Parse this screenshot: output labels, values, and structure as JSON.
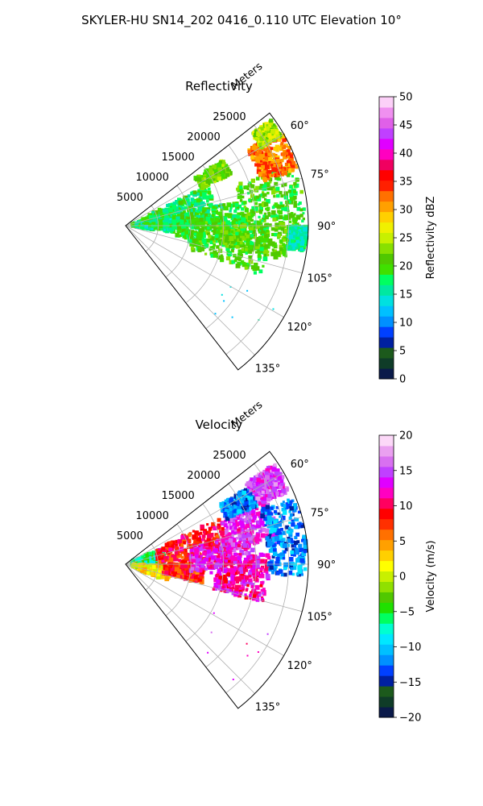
{
  "figure": {
    "title": "SKYLER-HU  SN14_202  0416_0.110 UTC Elevation 10°"
  },
  "chart_data": [
    {
      "type": "heatmap",
      "subtype": "polar-sector",
      "title": "Reflectivity",
      "radial_label": "Meters",
      "radial_ticks": [
        "5000",
        "10000",
        "15000",
        "20000",
        "25000"
      ],
      "radial_tick_values": [
        5000,
        10000,
        15000,
        20000,
        25000
      ],
      "rmax": 28000,
      "theta_range": [
        52,
        142
      ],
      "theta_ticks": [
        "60°",
        "75°",
        "90°",
        "105°",
        "120°",
        "135°"
      ],
      "theta_tick_values": [
        60,
        75,
        90,
        105,
        120,
        135
      ],
      "grid": true,
      "colorbar": {
        "label": "Reflectivity dBZ",
        "range": [
          0,
          50
        ],
        "ticks": [
          "0",
          "5",
          "10",
          "15",
          "20",
          "25",
          "30",
          "35",
          "40",
          "45",
          "50"
        ],
        "tick_values": [
          0,
          5,
          10,
          15,
          20,
          25,
          30,
          35,
          40,
          45,
          50
        ],
        "colors": [
          "#0a1a4a",
          "#0f3c28",
          "#1c5a1c",
          "#0020a0",
          "#0040ff",
          "#0090ff",
          "#00c0ff",
          "#00e0e0",
          "#00e8a0",
          "#00ff60",
          "#40e000",
          "#50c800",
          "#88e000",
          "#c8f000",
          "#f0f000",
          "#ffd000",
          "#ffa000",
          "#ff7000",
          "#ff2000",
          "#ff0000",
          "#f00060",
          "#ff00c0",
          "#e000ff",
          "#c040ff",
          "#e060e8",
          "#f090f0",
          "#fcd0f8"
        ]
      },
      "regions": [
        {
          "r": [
            1000,
            9000
          ],
          "theta": [
            70,
            98
          ],
          "value": 17
        },
        {
          "r": [
            4000,
            14000
          ],
          "theta": [
            64,
            92
          ],
          "value": 18
        },
        {
          "r": [
            8000,
            18000
          ],
          "theta": [
            78,
            102
          ],
          "value": 19
        },
        {
          "r": [
            10000,
            22000
          ],
          "theta": [
            84,
            110
          ],
          "value": 20
        },
        {
          "r": [
            14000,
            25000
          ],
          "theta": [
            90,
            102
          ],
          "value": 21
        },
        {
          "r": [
            18000,
            27500
          ],
          "theta": [
            70,
            92
          ],
          "value": 20
        },
        {
          "r": [
            22000,
            27800
          ],
          "theta": [
            58,
            72
          ],
          "value": 32
        },
        {
          "r": [
            24000,
            27500
          ],
          "theta": [
            54,
            60
          ],
          "value": 24
        },
        {
          "r": [
            13000,
            18000
          ],
          "theta": [
            56,
            64
          ],
          "value": 22
        },
        {
          "r": [
            25000,
            27800
          ],
          "theta": [
            90,
            98
          ],
          "value": 16
        },
        {
          "r": [
            15000,
            26000
          ],
          "theta": [
            116,
            138
          ],
          "value": 13,
          "sparse": true
        }
      ]
    },
    {
      "type": "heatmap",
      "subtype": "polar-sector",
      "title": "Velocity",
      "radial_label": "Meters",
      "radial_ticks": [
        "5000",
        "10000",
        "15000",
        "20000",
        "25000"
      ],
      "radial_tick_values": [
        5000,
        10000,
        15000,
        20000,
        25000
      ],
      "rmax": 28000,
      "theta_range": [
        52,
        142
      ],
      "theta_ticks": [
        "60°",
        "75°",
        "90°",
        "105°",
        "120°",
        "135°"
      ],
      "theta_tick_values": [
        60,
        75,
        90,
        105,
        120,
        135
      ],
      "grid": true,
      "colorbar": {
        "label": "Velocity (m/s)",
        "range": [
          -20,
          20
        ],
        "ticks": [
          "−20",
          "−15",
          "−10",
          "−5",
          "0",
          "5",
          "10",
          "15",
          "20"
        ],
        "tick_values": [
          -20,
          -15,
          -10,
          -5,
          0,
          5,
          10,
          15,
          20
        ],
        "colors": [
          "#0a1a4a",
          "#0f3c28",
          "#1c5a1c",
          "#0020a0",
          "#0040ff",
          "#0090ff",
          "#00c0ff",
          "#00e8ff",
          "#00ffd0",
          "#00ff60",
          "#20e000",
          "#50c800",
          "#90e000",
          "#c8f000",
          "#ffff00",
          "#ffd000",
          "#ffa000",
          "#ff7000",
          "#ff3000",
          "#ff0000",
          "#ff0060",
          "#ff00c0",
          "#e000ff",
          "#c040ff",
          "#d870f0",
          "#eaa0f0",
          "#fcd8f8"
        ]
      },
      "regions": [
        {
          "r": [
            1000,
            6000
          ],
          "theta": [
            66,
            90
          ],
          "value": -6
        },
        {
          "r": [
            1000,
            7000
          ],
          "theta": [
            92,
            112
          ],
          "value": 2
        },
        {
          "r": [
            5000,
            16000
          ],
          "theta": [
            64,
            88
          ],
          "value": 9
        },
        {
          "r": [
            6000,
            12000
          ],
          "theta": [
            90,
            104
          ],
          "value": 8
        },
        {
          "r": [
            10000,
            20000
          ],
          "theta": [
            76,
            96
          ],
          "value": 13
        },
        {
          "r": [
            14000,
            22000
          ],
          "theta": [
            86,
            106
          ],
          "value": 12
        },
        {
          "r": [
            16000,
            24000
          ],
          "theta": [
            64,
            82
          ],
          "value": 14
        },
        {
          "r": [
            22000,
            27500
          ],
          "theta": [
            56,
            66
          ],
          "value": 15
        },
        {
          "r": [
            22000,
            27800
          ],
          "theta": [
            68,
            94
          ],
          "value": -12
        },
        {
          "r": [
            17000,
            22000
          ],
          "theta": [
            58,
            66
          ],
          "value": -12
        },
        {
          "r": [
            15000,
            26000
          ],
          "theta": [
            116,
            138
          ],
          "value": 14,
          "sparse": true
        }
      ]
    }
  ]
}
